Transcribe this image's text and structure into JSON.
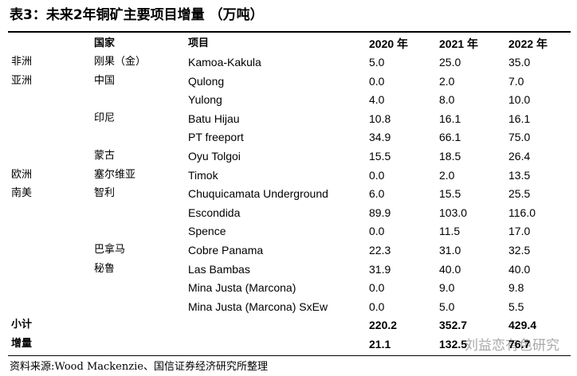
{
  "title": "表3：未来2年铜矿主要项目增量 （万吨）",
  "table": {
    "header": [
      "国家",
      "项目",
      "2020 年",
      "2021 年",
      "2022 年"
    ],
    "rows": [
      {
        "region": "非洲",
        "country": "刚果（金）",
        "project": "Kamoa-Kakula",
        "values": [
          "5.0",
          "25.0",
          "35.0"
        ]
      },
      {
        "region": "亚洲",
        "country": "中国",
        "project": "Qulong",
        "values": [
          "0.0",
          "2.0",
          "7.0"
        ]
      },
      {
        "project": "Yulong",
        "values": [
          "4.0",
          "8.0",
          "10.0"
        ]
      },
      {
        "country": "印尼",
        "project": "Batu Hijau",
        "values": [
          "10.8",
          "16.1",
          "16.1"
        ]
      },
      {
        "project": "PT freeport",
        "values": [
          "34.9",
          "66.1",
          "75.0"
        ]
      },
      {
        "country": "蒙古",
        "project": "Oyu Tolgoi",
        "values": [
          "15.5",
          "18.5",
          "26.4"
        ]
      },
      {
        "region": "欧洲",
        "country": "塞尔维亚",
        "project": "Timok",
        "values": [
          "0.0",
          "2.0",
          "13.5"
        ]
      },
      {
        "region": "南美",
        "country": "智利",
        "project": "Chuquicamata Underground",
        "values": [
          "6.0",
          "15.5",
          "25.5"
        ]
      },
      {
        "project": "Escondida",
        "values": [
          "89.9",
          "103.0",
          "116.0"
        ]
      },
      {
        "project": "Spence",
        "values": [
          "0.0",
          "11.5",
          "17.0"
        ]
      },
      {
        "country": "巴拿马",
        "project": "Cobre Panama",
        "values": [
          "22.3",
          "31.0",
          "32.5"
        ]
      },
      {
        "country": "秘鲁",
        "project": "Las Bambas",
        "values": [
          "31.9",
          "40.0",
          "40.0"
        ]
      },
      {
        "project": "Mina Justa (Marcona)",
        "values": [
          "0.0",
          "9.0",
          "9.8"
        ]
      },
      {
        "project": "Mina Justa (Marcona) SxEw",
        "values": [
          "0.0",
          "5.0",
          "5.5"
        ]
      }
    ],
    "totals": [
      {
        "label": "小计",
        "values": [
          "220.2",
          "352.7",
          "429.4"
        ]
      },
      {
        "label": "增量",
        "values": [
          "21.1",
          "132.5",
          "76.7"
        ]
      }
    ]
  },
  "watermark": "刘益恋有色研究",
  "source": "资料来源:Wood Mackenzie、国信证券经济研究所整理"
}
